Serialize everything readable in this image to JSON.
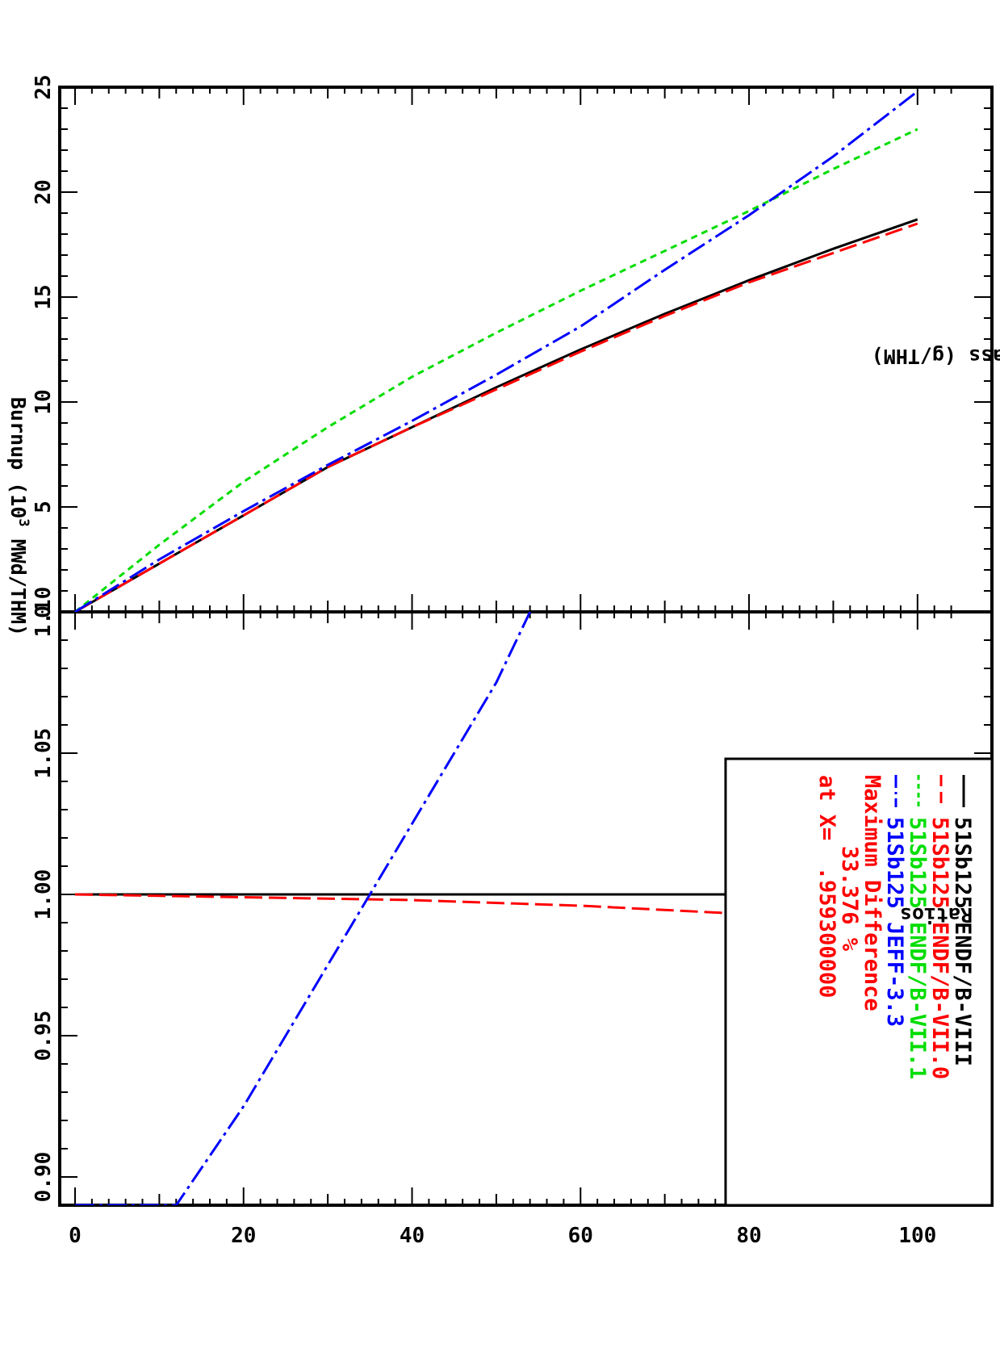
{
  "chart_data": [
    {
      "type": "line",
      "panel": "main",
      "xlabel": "Burnup (10",
      "xlabel_sup": "3",
      "xlabel_tail": " MWd/THM)",
      "ylabel": "Mass (g/THM)",
      "xlim": [
        0,
        105
      ],
      "ylim": [
        0,
        25
      ],
      "xticks": [
        0,
        20,
        40,
        60,
        80,
        100
      ],
      "xtick_labels": [
        "0",
        "20",
        "40",
        "60",
        "80",
        "100"
      ],
      "yticks": [
        0,
        5,
        10,
        15,
        20,
        25
      ],
      "ytick_labels": [
        "0",
        "5",
        "10",
        "15",
        "20",
        "25"
      ],
      "series": [
        {
          "name": "51Sb125 ENDF/B-VIII",
          "color": "#000000",
          "dash": "solid",
          "x": [
            0,
            10,
            20,
            30,
            40,
            50,
            60,
            70,
            80,
            90,
            100
          ],
          "y": [
            0,
            2.3,
            4.6,
            6.9,
            8.8,
            10.7,
            12.5,
            14.2,
            15.8,
            17.3,
            18.7
          ]
        },
        {
          "name": "51Sb125 ENDF/B-VII.0",
          "color": "#ff0000",
          "dash": "long-dash",
          "x": [
            0,
            10,
            20,
            30,
            40,
            50,
            60,
            70,
            80,
            90,
            100
          ],
          "y": [
            0,
            2.3,
            4.6,
            6.9,
            8.8,
            10.6,
            12.4,
            14.1,
            15.7,
            17.1,
            18.5
          ]
        },
        {
          "name": "51Sb125 ENDF/B-VII.1",
          "color": "#00dd00",
          "dash": "short-dash",
          "x": [
            0,
            10,
            20,
            30,
            40,
            50,
            60,
            70,
            80,
            90,
            100
          ],
          "y": [
            0,
            3.2,
            6.2,
            8.8,
            11.2,
            13.3,
            15.3,
            17.2,
            19.1,
            21.1,
            23.0
          ]
        },
        {
          "name": "51Sb125 JEFF-3.3",
          "color": "#0000ff",
          "dash": "dash-dot",
          "x": [
            0,
            10,
            20,
            30,
            40,
            50,
            60,
            70,
            80,
            90,
            100
          ],
          "y": [
            0,
            2.5,
            4.8,
            7.0,
            9.1,
            11.3,
            13.6,
            16.3,
            18.9,
            21.7,
            24.8
          ]
        }
      ],
      "legend": {
        "position": "top-left",
        "entries": [
          {
            "label": "51Sb125 ENDF/B-VIII",
            "color": "#000000"
          },
          {
            "label": "51Sb125 ENDF/B-VII.0",
            "color": "#ff0000"
          },
          {
            "label": "51Sb125 ENDF/B-VII.1",
            "color": "#00dd00"
          },
          {
            "label": "51Sb125 JEFF-3.3",
            "color": "#0000ff"
          }
        ],
        "annotations": [
          {
            "text": "Maximum Difference",
            "color": "#ff0000"
          },
          {
            "text": "33.376 %",
            "color": "#ff0000"
          },
          {
            "text": "at X=  .959300000",
            "color": "#ff0000"
          }
        ]
      },
      "grid": false
    },
    {
      "type": "line",
      "panel": "ratios",
      "xlabel": "Burnup (10",
      "ylabel": "Ratios",
      "xlim": [
        0,
        105
      ],
      "ylim": [
        0.89,
        1.1
      ],
      "xticks": [
        0,
        20,
        40,
        60,
        80,
        100
      ],
      "yticks": [
        0.9,
        0.95,
        1.0,
        1.05,
        1.1
      ],
      "ytick_labels": [
        "0.90",
        "0.95",
        "1.00",
        "1.05",
        "1.10"
      ],
      "series": [
        {
          "name": "51Sb125 ENDF/B-VIII",
          "color": "#000000",
          "dash": "solid",
          "x": [
            0,
            100
          ],
          "y": [
            1.0,
            1.0
          ]
        },
        {
          "name": "51Sb125 ENDF/B-VII.0",
          "color": "#ff0000",
          "dash": "long-dash",
          "x": [
            0,
            20,
            40,
            60,
            80,
            100
          ],
          "y": [
            1.0,
            0.999,
            0.998,
            0.996,
            0.993,
            0.989
          ]
        },
        {
          "name": "51Sb125 ENDF/B-VII.1",
          "color": "#00dd00",
          "dash": "short-dash",
          "x": [
            0,
            0
          ],
          "y": [
            1.1,
            1.1
          ]
        },
        {
          "name": "51Sb125 JEFF-3.3",
          "color": "#0000ff",
          "dash": "dash-dot",
          "x": [
            0,
            0,
            12,
            20,
            30,
            40,
            50,
            54
          ],
          "y": [
            0.89,
            0.89,
            0.89,
            0.925,
            0.975,
            1.025,
            1.075,
            1.1
          ]
        }
      ],
      "grid": false
    }
  ]
}
